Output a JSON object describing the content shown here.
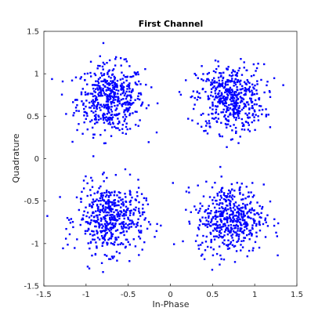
{
  "chart_data": {
    "type": "scatter",
    "title": "First Channel",
    "xlabel": "In-Phase",
    "ylabel": "Quadrature",
    "xlim": [
      -1.5,
      1.5
    ],
    "ylim": [
      -1.5,
      1.5
    ],
    "xticks": [
      -1.5,
      -1,
      -0.5,
      0,
      0.5,
      1,
      1.5
    ],
    "xtick_labels": [
      "-1.5",
      "-1",
      "-0.5",
      "0",
      "0.5",
      "1",
      "1.5"
    ],
    "yticks": [
      -1.5,
      -1,
      -0.5,
      0,
      0.5,
      1,
      1.5
    ],
    "ytick_labels": [
      "-1.5",
      "-1",
      "-0.5",
      "0",
      "0.5",
      "1",
      "1.5"
    ],
    "grid": false,
    "marker_color": "#0000ff",
    "points_per_cluster": 500,
    "clusters": [
      {
        "center": [
          -0.707,
          0.707
        ],
        "spread": 0.2
      },
      {
        "center": [
          0.707,
          0.707
        ],
        "spread": 0.2
      },
      {
        "center": [
          -0.707,
          -0.707
        ],
        "spread": 0.2
      },
      {
        "center": [
          0.707,
          -0.707
        ],
        "spread": 0.2
      }
    ]
  }
}
